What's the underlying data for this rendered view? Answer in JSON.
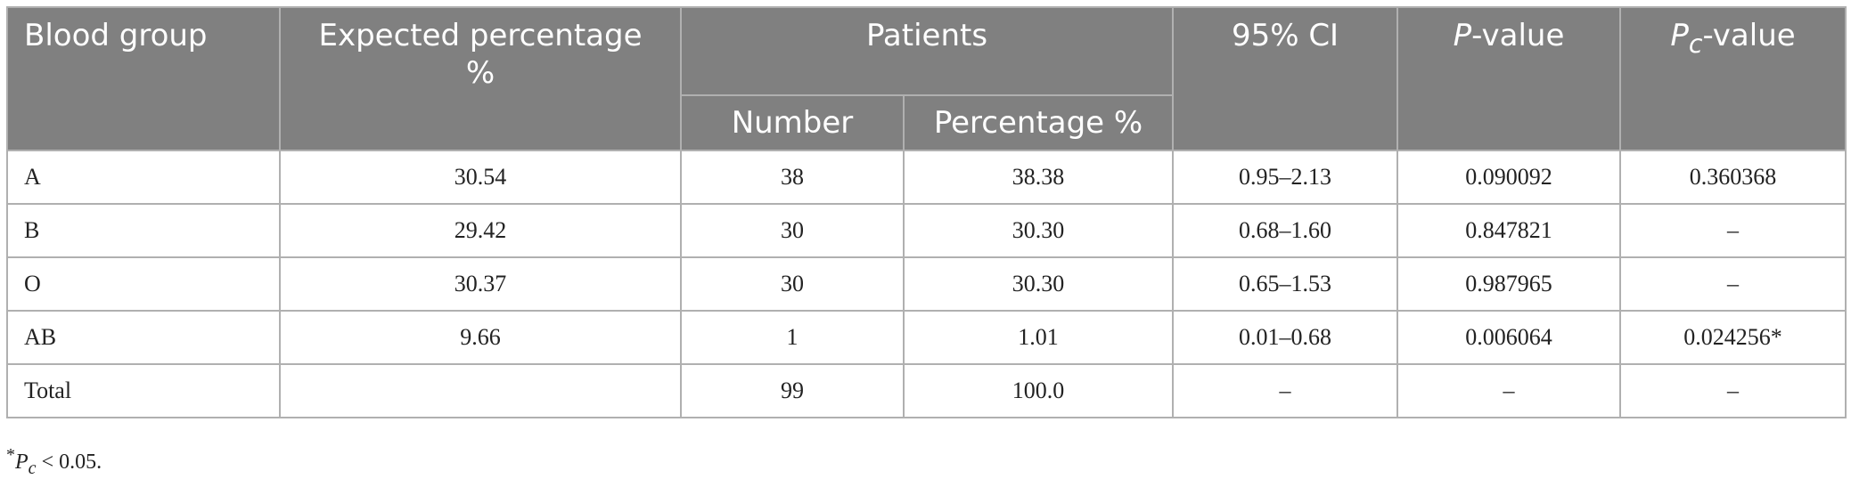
{
  "table": {
    "header": {
      "blood_group": "Blood group",
      "expected": "Expected percentage %",
      "patients": "Patients",
      "number": "Number",
      "percentage": "Percentage %",
      "ci": "95% CI",
      "p_value": {
        "italic": "P",
        "text": "-value"
      },
      "pc_value": {
        "italic": "P",
        "sub": "c",
        "text": "-value"
      }
    },
    "rows": [
      [
        "A",
        "30.54",
        "38",
        "38.38",
        "0.95–2.13",
        "0.090092",
        "0.360368"
      ],
      [
        "B",
        "29.42",
        "30",
        "30.30",
        "0.68–1.60",
        "0.847821",
        "–"
      ],
      [
        "O",
        "30.37",
        "30",
        "30.30",
        "0.65–1.53",
        "0.987965",
        "–"
      ],
      [
        "AB",
        "9.66",
        "1",
        "1.01",
        "0.01–0.68",
        "0.006064",
        "0.024256*"
      ],
      [
        "Total",
        null,
        "99",
        "100.0",
        "–",
        "–",
        "–"
      ]
    ]
  },
  "footnote": {
    "mark": "*",
    "italic": "P",
    "sub": "c",
    "text": " < 0.05."
  }
}
